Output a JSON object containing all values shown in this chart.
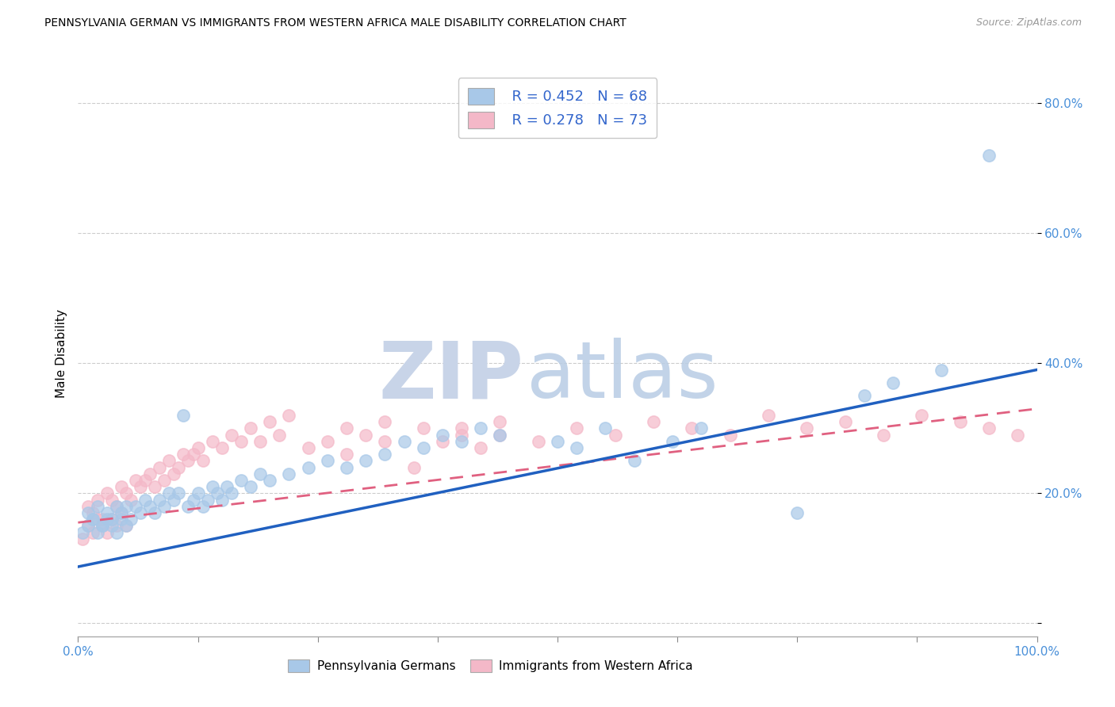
{
  "title": "PENNSYLVANIA GERMAN VS IMMIGRANTS FROM WESTERN AFRICA MALE DISABILITY CORRELATION CHART",
  "source": "Source: ZipAtlas.com",
  "ylabel": "Male Disability",
  "xmin": 0.0,
  "xmax": 1.0,
  "ymin": -0.02,
  "ymax": 0.85,
  "yticks": [
    0.0,
    0.2,
    0.4,
    0.6,
    0.8
  ],
  "ytick_labels": [
    "",
    "20.0%",
    "40.0%",
    "60.0%",
    "80.0%"
  ],
  "legend_r1": "R = 0.452",
  "legend_n1": "N = 68",
  "legend_r2": "R = 0.278",
  "legend_n2": "N = 73",
  "color_blue": "#a8c8e8",
  "color_pink": "#f4b8c8",
  "color_blue_line": "#2060c0",
  "color_pink_line": "#e06080",
  "watermark_zip_color": "#c8d4e8",
  "watermark_atlas_color": "#b8cce4",
  "blue_scatter_x": [
    0.005,
    0.01,
    0.015,
    0.02,
    0.025,
    0.03,
    0.035,
    0.04,
    0.045,
    0.05,
    0.01,
    0.015,
    0.02,
    0.025,
    0.03,
    0.035,
    0.04,
    0.045,
    0.05,
    0.055,
    0.06,
    0.065,
    0.07,
    0.075,
    0.08,
    0.085,
    0.09,
    0.095,
    0.1,
    0.105,
    0.11,
    0.115,
    0.12,
    0.125,
    0.13,
    0.135,
    0.14,
    0.145,
    0.15,
    0.155,
    0.16,
    0.17,
    0.18,
    0.19,
    0.2,
    0.22,
    0.24,
    0.26,
    0.28,
    0.3,
    0.32,
    0.34,
    0.36,
    0.38,
    0.4,
    0.42,
    0.44,
    0.5,
    0.52,
    0.55,
    0.58,
    0.62,
    0.65,
    0.75,
    0.82,
    0.85,
    0.9,
    0.95
  ],
  "blue_scatter_y": [
    0.14,
    0.15,
    0.16,
    0.14,
    0.15,
    0.16,
    0.15,
    0.14,
    0.16,
    0.15,
    0.17,
    0.16,
    0.18,
    0.15,
    0.17,
    0.16,
    0.18,
    0.17,
    0.18,
    0.16,
    0.18,
    0.17,
    0.19,
    0.18,
    0.17,
    0.19,
    0.18,
    0.2,
    0.19,
    0.2,
    0.32,
    0.18,
    0.19,
    0.2,
    0.18,
    0.19,
    0.21,
    0.2,
    0.19,
    0.21,
    0.2,
    0.22,
    0.21,
    0.23,
    0.22,
    0.23,
    0.24,
    0.25,
    0.24,
    0.25,
    0.26,
    0.28,
    0.27,
    0.29,
    0.28,
    0.3,
    0.29,
    0.28,
    0.27,
    0.3,
    0.25,
    0.28,
    0.3,
    0.17,
    0.35,
    0.37,
    0.39,
    0.72
  ],
  "pink_scatter_x": [
    0.005,
    0.01,
    0.015,
    0.02,
    0.025,
    0.03,
    0.035,
    0.04,
    0.045,
    0.05,
    0.01,
    0.015,
    0.02,
    0.025,
    0.03,
    0.035,
    0.04,
    0.045,
    0.05,
    0.055,
    0.06,
    0.065,
    0.07,
    0.075,
    0.08,
    0.085,
    0.09,
    0.095,
    0.1,
    0.105,
    0.11,
    0.115,
    0.12,
    0.125,
    0.13,
    0.14,
    0.15,
    0.16,
    0.17,
    0.18,
    0.19,
    0.2,
    0.21,
    0.22,
    0.24,
    0.26,
    0.28,
    0.3,
    0.32,
    0.35,
    0.38,
    0.4,
    0.42,
    0.44,
    0.28,
    0.32,
    0.36,
    0.4,
    0.44,
    0.48,
    0.52,
    0.56,
    0.6,
    0.64,
    0.68,
    0.72,
    0.76,
    0.8,
    0.84,
    0.88,
    0.92,
    0.95,
    0.98
  ],
  "pink_scatter_y": [
    0.13,
    0.15,
    0.14,
    0.16,
    0.15,
    0.14,
    0.16,
    0.15,
    0.17,
    0.15,
    0.18,
    0.17,
    0.19,
    0.16,
    0.2,
    0.19,
    0.18,
    0.21,
    0.2,
    0.19,
    0.22,
    0.21,
    0.22,
    0.23,
    0.21,
    0.24,
    0.22,
    0.25,
    0.23,
    0.24,
    0.26,
    0.25,
    0.26,
    0.27,
    0.25,
    0.28,
    0.27,
    0.29,
    0.28,
    0.3,
    0.28,
    0.31,
    0.29,
    0.32,
    0.27,
    0.28,
    0.3,
    0.29,
    0.31,
    0.24,
    0.28,
    0.3,
    0.27,
    0.29,
    0.26,
    0.28,
    0.3,
    0.29,
    0.31,
    0.28,
    0.3,
    0.29,
    0.31,
    0.3,
    0.29,
    0.32,
    0.3,
    0.31,
    0.29,
    0.32,
    0.31,
    0.3,
    0.29
  ],
  "blue_line_x0": 0.0,
  "blue_line_y0": 0.087,
  "blue_line_x1": 1.0,
  "blue_line_y1": 0.39,
  "pink_line_x0": 0.0,
  "pink_line_y0": 0.155,
  "pink_line_x1": 1.0,
  "pink_line_y1": 0.33
}
